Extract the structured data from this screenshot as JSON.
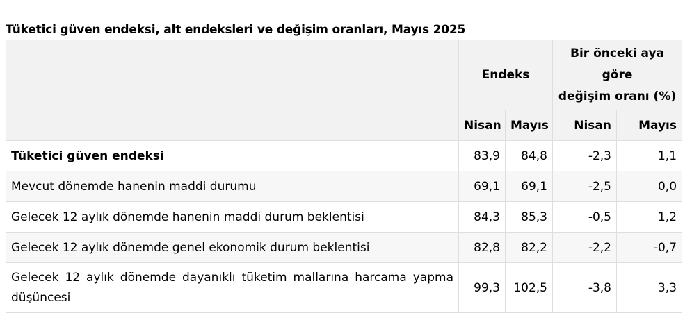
{
  "caption": "Tüketici güven endeksi, alt endeksleri ve değişim oranları, Mayıs 2025",
  "header": {
    "endeks": "Endeks",
    "change_line1": "Bir önceki aya",
    "change_line2": "göre",
    "change_line3": "değişim oranı (%)",
    "sub_cols": [
      "Nisan",
      "Mayıs",
      "Nisan",
      "Mayıs"
    ]
  },
  "rows": [
    {
      "label": "Tüketici güven endeksi",
      "idx_nisan": "83,9",
      "idx_mayis": "84,8",
      "chg_nisan": "-2,3",
      "chg_mayis": "1,1"
    },
    {
      "label": "Mevcut dönemde hanenin maddi durumu",
      "idx_nisan": "69,1",
      "idx_mayis": "69,1",
      "chg_nisan": "-2,5",
      "chg_mayis": "0,0"
    },
    {
      "label": "Gelecek 12 aylık dönemde hanenin maddi durum beklentisi",
      "idx_nisan": "84,3",
      "idx_mayis": "85,3",
      "chg_nisan": "-0,5",
      "chg_mayis": "1,2"
    },
    {
      "label": "Gelecek 12 aylık dönemde genel ekonomik durum beklentisi",
      "idx_nisan": "82,8",
      "idx_mayis": "82,2",
      "chg_nisan": "-2,2",
      "chg_mayis": "-0,7"
    },
    {
      "label": "Gelecek 12 aylık dönemde dayanıklı tüketim mallarına harcama yapma düşüncesi",
      "idx_nisan": "99,3",
      "idx_mayis": "102,5",
      "chg_nisan": "-3,8",
      "chg_mayis": "3,3"
    }
  ]
}
